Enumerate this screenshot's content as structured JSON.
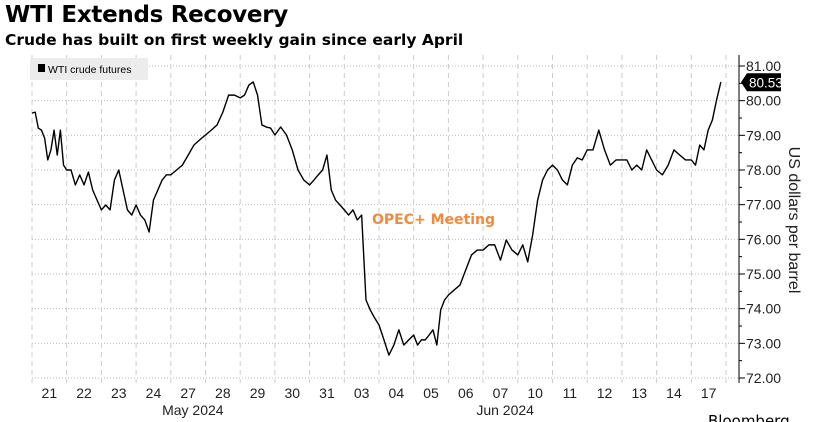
{
  "chart_data": {
    "type": "line",
    "title": "WTI Extends Recovery",
    "subtitle": "Crude has built on first weekly gain since early April",
    "ylabel": "US dollars per barrel",
    "ylim": [
      72,
      81
    ],
    "yticks": [
      "81.00",
      "80.00",
      "79.00",
      "78.00",
      "77.00",
      "76.00",
      "75.00",
      "74.00",
      "73.00",
      "72.00"
    ],
    "grid": true,
    "legend": {
      "position": "top-left",
      "entries": [
        "WTI crude futures"
      ]
    },
    "last_value_label": "80.53",
    "annotation": {
      "text": "OPEC+ Meeting",
      "color": "#f08a3c"
    },
    "months": [
      {
        "label": "May 2024",
        "day": "28"
      },
      {
        "label": "Jun 2024",
        "day": "10"
      }
    ],
    "line_color": "#000000",
    "series": [
      {
        "name": "WTI crude futures",
        "days": [
          {
            "label": "21",
            "prices": [
              79.64,
              79.67,
              79.21,
              79.15,
              78.92,
              78.29,
              78.58,
              79.15,
              78.43,
              79.15,
              78.14
            ]
          },
          {
            "label": "22",
            "prices": [
              78.0,
              78.0,
              77.57,
              77.86,
              77.57,
              77.94,
              77.42,
              77.13
            ]
          },
          {
            "label": "23",
            "prices": [
              76.85,
              76.99,
              76.85,
              77.71,
              78.0,
              77.42,
              76.85,
              76.7
            ]
          },
          {
            "label": "24",
            "prices": [
              76.99,
              76.7,
              76.56,
              76.21,
              77.13,
              77.42,
              77.71,
              77.86
            ]
          },
          {
            "label": "27",
            "prices": [
              77.86,
              78.0,
              78.14,
              78.43,
              78.72,
              78.87
            ]
          },
          {
            "label": "28",
            "prices": [
              79.01,
              79.15,
              79.3,
              79.67,
              80.16,
              80.16
            ]
          },
          {
            "label": "29",
            "prices": [
              80.08,
              80.16,
              80.45,
              80.54,
              80.16,
              79.3,
              79.24,
              79.21
            ]
          },
          {
            "label": "30",
            "prices": [
              79.01,
              79.24,
              79.01,
              78.58,
              78.0,
              77.71
            ]
          },
          {
            "label": "31",
            "prices": [
              77.57,
              77.71,
              77.86,
              78.0,
              78.43,
              77.42,
              77.13,
              76.99
            ]
          },
          {
            "label": "03",
            "prices": [
              76.85,
              76.7,
              76.85,
              76.56,
              76.7,
              74.25,
              73.96,
              73.73
            ]
          },
          {
            "label": "04",
            "prices": [
              73.53,
              73.1,
              72.66,
              72.95,
              73.39,
              72.95,
              73.1
            ]
          },
          {
            "label": "05",
            "prices": [
              73.24,
              72.95,
              73.1,
              73.1,
              73.24,
              73.39,
              72.95,
              73.96,
              74.25
            ]
          },
          {
            "label": "06",
            "prices": [
              74.39,
              74.54,
              74.68,
              75.12,
              75.55,
              75.69
            ]
          },
          {
            "label": "07",
            "prices": [
              75.69,
              75.84,
              75.84,
              75.4,
              75.98,
              75.69
            ]
          },
          {
            "label": "10",
            "prices": [
              75.55,
              75.84,
              75.35,
              76.13,
              77.13,
              77.71,
              78.0
            ]
          },
          {
            "label": "11",
            "prices": [
              78.14,
              78.0,
              77.71,
              77.57,
              78.14,
              78.35,
              78.29
            ]
          },
          {
            "label": "12",
            "prices": [
              78.58,
              78.58,
              79.15,
              78.58,
              78.14,
              78.29
            ]
          },
          {
            "label": "13",
            "prices": [
              78.29,
              78.29,
              78.0,
              78.14,
              78.0,
              78.58,
              78.29
            ]
          },
          {
            "label": "14",
            "prices": [
              78.0,
              77.86,
              78.14,
              78.58,
              78.43,
              78.29
            ]
          },
          {
            "label": "17",
            "prices": [
              78.29,
              78.14,
              78.72,
              78.58,
              79.15,
              79.44,
              80.02,
              80.53
            ]
          }
        ]
      }
    ]
  },
  "source": "Bloomberg"
}
